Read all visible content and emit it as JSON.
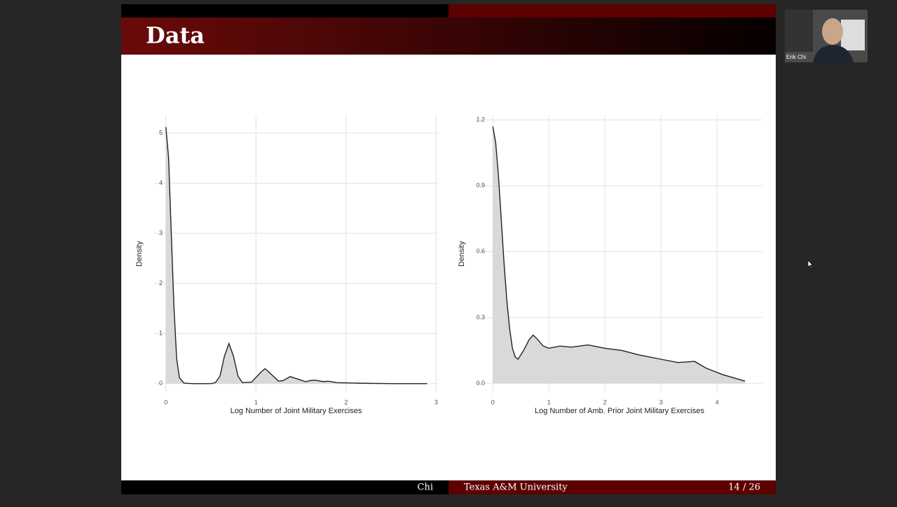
{
  "slide": {
    "title": "Data",
    "footer_author": "Chi",
    "footer_institution": "Texas A&M University",
    "footer_page": "14 / 26"
  },
  "participant": {
    "name": "Erik Chi"
  },
  "chart_data": [
    {
      "type": "density",
      "x_label": "Log Number of Joint Military Exercises",
      "y_label": "Density",
      "x": [
        0,
        0.03,
        0.06,
        0.09,
        0.12,
        0.15,
        0.2,
        0.3,
        0.5,
        0.55,
        0.6,
        0.65,
        0.7,
        0.75,
        0.8,
        0.85,
        0.95,
        1.05,
        1.1,
        1.15,
        1.25,
        1.3,
        1.38,
        1.45,
        1.55,
        1.6,
        1.65,
        1.75,
        1.8,
        1.9,
        2.1,
        2.5,
        2.9
      ],
      "values": [
        5.12,
        4.5,
        3.0,
        1.5,
        0.5,
        0.12,
        0.01,
        0,
        0,
        0.02,
        0.15,
        0.55,
        0.8,
        0.55,
        0.15,
        0.02,
        0.03,
        0.22,
        0.3,
        0.22,
        0.05,
        0.06,
        0.14,
        0.1,
        0.04,
        0.06,
        0.07,
        0.04,
        0.05,
        0.02,
        0.01,
        0,
        0
      ],
      "color": "#222222",
      "fill": "#d9d9d9",
      "xlim": [
        -0.13,
        3.02
      ],
      "ylim": [
        -0.17,
        5.35
      ],
      "xticks": [
        0,
        1,
        2,
        3
      ],
      "yticks": [
        0,
        1,
        2,
        3,
        4,
        5
      ],
      "grid": true
    },
    {
      "type": "density",
      "x_label": "Log Number of Amb. Prior Joint Military Exercises",
      "y_label": "Density",
      "x": [
        0,
        0.05,
        0.1,
        0.15,
        0.2,
        0.25,
        0.3,
        0.35,
        0.4,
        0.45,
        0.55,
        0.65,
        0.72,
        0.8,
        0.9,
        1,
        1.2,
        1.4,
        1.7,
        2,
        2.3,
        2.6,
        3,
        3.3,
        3.6,
        3.8,
        4.1,
        4.3,
        4.5
      ],
      "values": [
        1.17,
        1.1,
        0.95,
        0.75,
        0.55,
        0.38,
        0.25,
        0.16,
        0.12,
        0.11,
        0.15,
        0.2,
        0.22,
        0.2,
        0.17,
        0.16,
        0.17,
        0.165,
        0.175,
        0.16,
        0.15,
        0.13,
        0.11,
        0.095,
        0.1,
        0.07,
        0.04,
        0.025,
        0.01
      ],
      "color": "#222222",
      "fill": "#d9d9d9",
      "xlim": [
        -0.29,
        4.81
      ],
      "ylim": [
        -0.04,
        1.22
      ],
      "xticks": [
        0,
        1,
        2,
        3,
        4
      ],
      "yticks": [
        {
          "value": 0,
          "label": "0.0"
        },
        0.3,
        0.6,
        0.9,
        1.2
      ],
      "grid": true
    }
  ]
}
